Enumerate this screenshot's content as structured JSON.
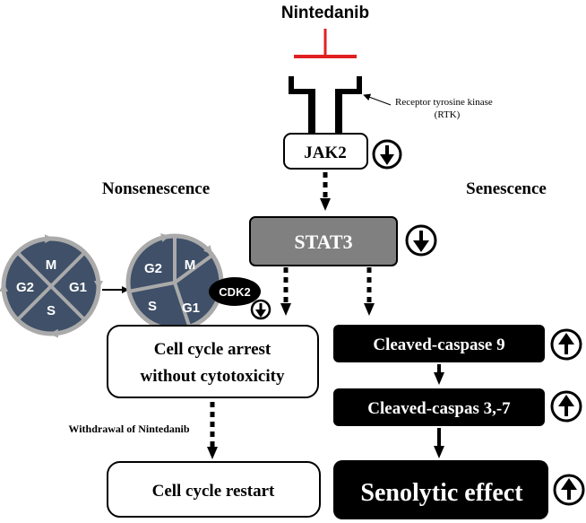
{
  "drug": "Nintedanib",
  "receptor_label": "Receptor tyrosine kinase",
  "receptor_abbr": "(RTK)",
  "jak2": "JAK2",
  "stat3": "STAT3",
  "left_heading": "Nonsenescence",
  "right_heading": "Senescence",
  "cell_cycle_left": {
    "top": "M",
    "left": "G2",
    "right": "G1",
    "bottom": "S"
  },
  "cell_cycle_right": {
    "top_left": "G2",
    "top_right": "M",
    "bottom_left": "S",
    "bottom_right": "G1"
  },
  "cdk2": "CDK2",
  "arrest_line1": "Cell cycle arrest",
  "arrest_line2": "without cytotoxicity",
  "withdrawal": "Withdrawal of Nintedanib",
  "restart": "Cell cycle restart",
  "casp9": "Cleaved-caspase 9",
  "casp37": "Cleaved-caspas 3,-7",
  "senolytic": "Senolytic effect",
  "colors": {
    "inhibit": "#e02020",
    "cycle": "#3f5068",
    "stat3": "#808080",
    "dark": "#000000"
  },
  "icons": [
    "down-arrow-circle-icon",
    "up-arrow-circle-icon",
    "inhibit-bar-icon"
  ]
}
